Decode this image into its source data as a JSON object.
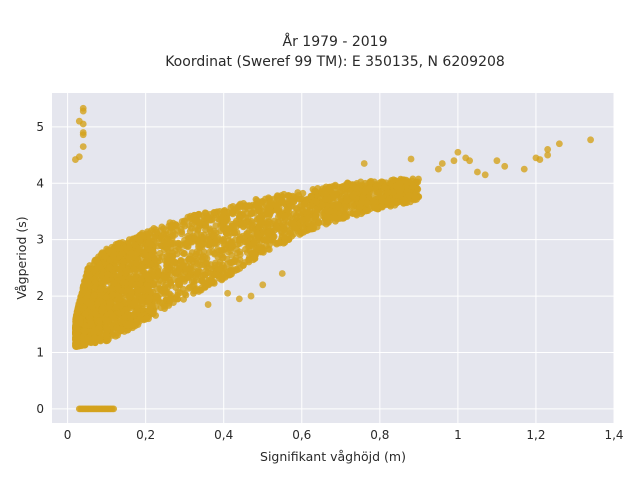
{
  "chart_data": {
    "type": "scatter",
    "title": "År 1979 - 2019",
    "subtitle": "Koordinat (Sweref 99 TM): E 350135, N 6209208",
    "xlabel": "Signifikant våghöjd (m)",
    "ylabel": "Vågperiod (s)",
    "xlim": [
      -0.04,
      1.4
    ],
    "ylim": [
      -0.25,
      5.6
    ],
    "x_ticks": [
      0,
      0.2,
      0.4,
      0.6,
      0.8,
      1,
      1.2,
      1.4
    ],
    "x_tick_labels": [
      "0",
      "0,2",
      "0,4",
      "0,6",
      "0,8",
      "1",
      "1,2",
      "1,4"
    ],
    "y_ticks": [
      0,
      1,
      2,
      3,
      4,
      5
    ],
    "y_tick_labels": [
      "0",
      "1",
      "2",
      "3",
      "4",
      "5"
    ],
    "grid": true,
    "background_color": "#e5e6ee",
    "point_color": "#d4a21c",
    "series": [
      {
        "dense_band": {
          "x_range": [
            0.02,
            0.9
          ],
          "y_lower": [
            [
              0.02,
              1.1
            ],
            [
              0.1,
              1.2
            ],
            [
              0.2,
              1.55
            ],
            [
              0.3,
              1.95
            ],
            [
              0.4,
              2.3
            ],
            [
              0.5,
              2.75
            ],
            [
              0.6,
              3.1
            ],
            [
              0.7,
              3.35
            ],
            [
              0.8,
              3.55
            ],
            [
              0.9,
              3.7
            ]
          ],
          "y_upper": [
            [
              0.02,
              1.6
            ],
            [
              0.05,
              2.5
            ],
            [
              0.1,
              2.85
            ],
            [
              0.2,
              3.15
            ],
            [
              0.3,
              3.4
            ],
            [
              0.4,
              3.55
            ],
            [
              0.5,
              3.75
            ],
            [
              0.6,
              3.85
            ],
            [
              0.7,
              4.0
            ],
            [
              0.8,
              4.05
            ],
            [
              0.9,
              4.1
            ]
          ]
        },
        "points": [
          {
            "x": 0.02,
            "y": 4.42
          },
          {
            "x": 0.03,
            "y": 4.47
          },
          {
            "x": 0.03,
            "y": 5.1
          },
          {
            "x": 0.04,
            "y": 5.05
          },
          {
            "x": 0.04,
            "y": 5.28
          },
          {
            "x": 0.04,
            "y": 5.33
          },
          {
            "x": 0.04,
            "y": 4.9
          },
          {
            "x": 0.04,
            "y": 4.86
          },
          {
            "x": 0.04,
            "y": 4.65
          },
          {
            "x": 0.76,
            "y": 4.35
          },
          {
            "x": 0.88,
            "y": 4.43
          },
          {
            "x": 0.95,
            "y": 4.25
          },
          {
            "x": 0.96,
            "y": 4.35
          },
          {
            "x": 0.99,
            "y": 4.4
          },
          {
            "x": 1.0,
            "y": 4.55
          },
          {
            "x": 1.02,
            "y": 4.45
          },
          {
            "x": 1.03,
            "y": 4.4
          },
          {
            "x": 1.05,
            "y": 4.2
          },
          {
            "x": 1.07,
            "y": 4.15
          },
          {
            "x": 1.1,
            "y": 4.4
          },
          {
            "x": 1.12,
            "y": 4.3
          },
          {
            "x": 1.17,
            "y": 4.25
          },
          {
            "x": 1.2,
            "y": 4.45
          },
          {
            "x": 1.21,
            "y": 4.42
          },
          {
            "x": 1.23,
            "y": 4.6
          },
          {
            "x": 1.23,
            "y": 4.5
          },
          {
            "x": 1.26,
            "y": 4.7
          },
          {
            "x": 1.34,
            "y": 4.77
          },
          {
            "x": 0.5,
            "y": 2.2
          },
          {
            "x": 0.47,
            "y": 2.0
          },
          {
            "x": 0.44,
            "y": 1.95
          },
          {
            "x": 0.41,
            "y": 2.05
          },
          {
            "x": 0.36,
            "y": 1.85
          },
          {
            "x": 0.55,
            "y": 2.4
          }
        ],
        "zero_cluster": {
          "x_range": [
            0.03,
            0.12
          ],
          "y": 0
        }
      }
    ]
  }
}
